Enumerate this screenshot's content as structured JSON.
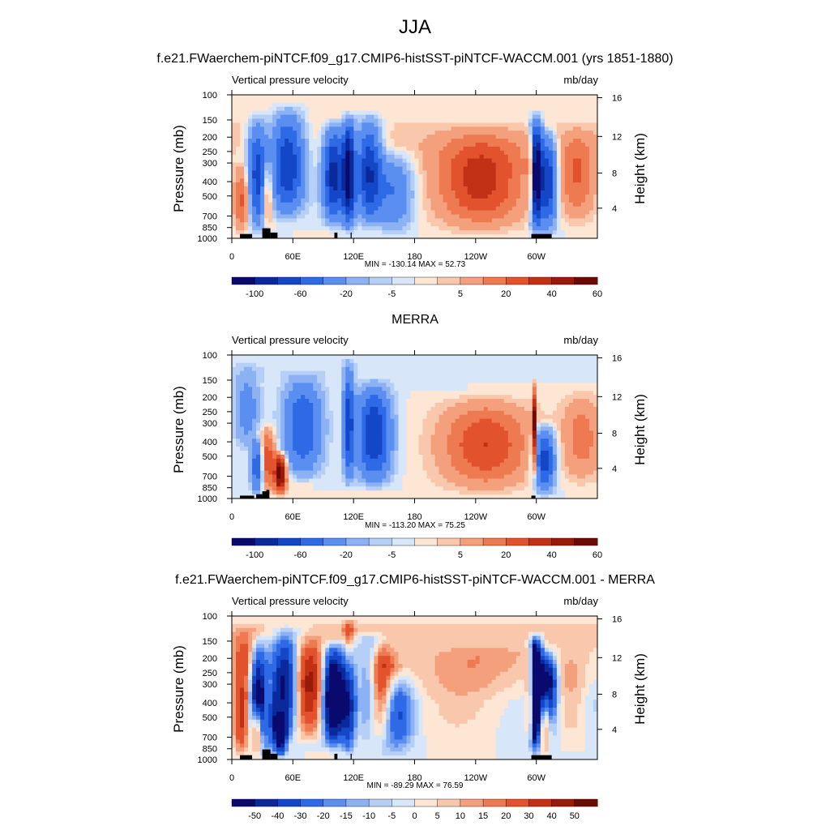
{
  "figure": {
    "title": "JJA"
  },
  "chart_data": [
    {
      "type": "heatmap",
      "title": "f.e21.FWaerchem-piNTCF.f09_g17.CMIP6-histSST-piNTCF-WACCM.001 (yrs 1851-1880)",
      "left_subtitle": "Vertical pressure velocity",
      "right_subtitle": "mb/day",
      "ylabel": "Pressure (mb)",
      "ylabel_right": "Height (km)",
      "x_ticks": [
        "0",
        "60E",
        "120E",
        "180",
        "120W",
        "60W"
      ],
      "y_ticks": [
        "100",
        "150",
        "200",
        "250",
        "300",
        "400",
        "500",
        "700",
        "850",
        "1000"
      ],
      "y_right_ticks": [
        "16",
        "12",
        "8",
        "4"
      ],
      "stats": "MIN = -130.14  MAX =  52.73",
      "colorbar_labels": [
        "-100",
        "-60",
        "-20",
        "-5",
        "5",
        "20",
        "40",
        "60"
      ],
      "min": -130.14,
      "max": 52.73
    },
    {
      "type": "heatmap",
      "title": "MERRA",
      "left_subtitle": "Vertical pressure velocity",
      "right_subtitle": "mb/day",
      "ylabel": "Pressure (mb)",
      "ylabel_right": "Height (km)",
      "x_ticks": [
        "0",
        "60E",
        "120E",
        "180",
        "120W",
        "60W"
      ],
      "y_ticks": [
        "100",
        "150",
        "200",
        "250",
        "300",
        "400",
        "500",
        "700",
        "850",
        "1000"
      ],
      "y_right_ticks": [
        "16",
        "12",
        "8",
        "4"
      ],
      "stats": "MIN = -113.20  MAX =  75.25",
      "colorbar_labels": [
        "-100",
        "-60",
        "-20",
        "-5",
        "5",
        "20",
        "40",
        "60"
      ],
      "min": -113.2,
      "max": 75.25
    },
    {
      "type": "heatmap",
      "title": "f.e21.FWaerchem-piNTCF.f09_g17.CMIP6-histSST-piNTCF-WACCM.001 - MERRA",
      "left_subtitle": "Vertical pressure velocity",
      "right_subtitle": "mb/day",
      "ylabel": "Pressure (mb)",
      "ylabel_right": "Height (km)",
      "x_ticks": [
        "0",
        "60E",
        "120E",
        "180",
        "120W",
        "60W"
      ],
      "y_ticks": [
        "100",
        "150",
        "200",
        "250",
        "300",
        "400",
        "500",
        "700",
        "850",
        "1000"
      ],
      "y_right_ticks": [
        "16",
        "12",
        "8",
        "4"
      ],
      "stats": "MIN = -89.29  MAX =  76.59",
      "colorbar_labels": [
        "-50",
        "-40",
        "-30",
        "-20",
        "-15",
        "-10",
        "-5",
        "0",
        "5",
        "10",
        "15",
        "20",
        "30",
        "40",
        "50"
      ],
      "min": -89.29,
      "max": 76.59
    }
  ],
  "colors": {
    "palette": [
      "#0a0a6e",
      "#0a2a9c",
      "#1446c8",
      "#2e6ae6",
      "#5a8ef0",
      "#8cb2f4",
      "#b6cff6",
      "#d8e6fa",
      "#fde6d4",
      "#f9c8ac",
      "#f4a07c",
      "#ee7a52",
      "#e2522c",
      "#c23016",
      "#9a1a0a",
      "#6e0a04"
    ],
    "terrain": "#000000"
  }
}
